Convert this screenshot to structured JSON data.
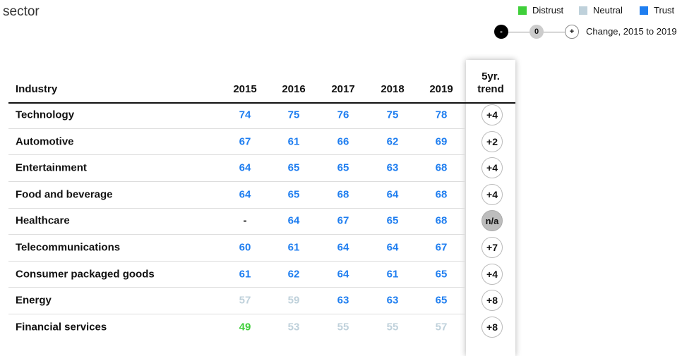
{
  "header": {
    "title": "sector"
  },
  "legend": {
    "items": [
      {
        "label": "Distrust",
        "color": "#3fcf3a"
      },
      {
        "label": "Neutral",
        "color": "#bfd1db"
      },
      {
        "label": "Trust",
        "color": "#1f7ef0"
      }
    ],
    "scale": {
      "minus": "-",
      "zero": "0",
      "plus": "+",
      "label": "Change, 2015 to 2019"
    }
  },
  "table": {
    "columns": [
      "Industry",
      2015,
      2016,
      2017,
      2018,
      2019,
      "5yr. trend"
    ],
    "rows": [
      {
        "name": "Technology",
        "values": [
          74,
          75,
          76,
          75,
          78
        ],
        "colors": [
          "#1f7ef0",
          "#1f7ef0",
          "#1f7ef0",
          "#1f7ef0",
          "#1f7ef0"
        ],
        "trend": "+4"
      },
      {
        "name": "Automotive",
        "values": [
          67,
          61,
          66,
          62,
          69
        ],
        "colors": [
          "#1f7ef0",
          "#1f7ef0",
          "#1f7ef0",
          "#1f7ef0",
          "#1f7ef0"
        ],
        "trend": "+2"
      },
      {
        "name": "Entertainment",
        "values": [
          64,
          65,
          65,
          63,
          68
        ],
        "colors": [
          "#1f7ef0",
          "#1f7ef0",
          "#1f7ef0",
          "#1f7ef0",
          "#1f7ef0"
        ],
        "trend": "+4"
      },
      {
        "name": "Food and beverage",
        "values": [
          64,
          65,
          68,
          64,
          68
        ],
        "colors": [
          "#1f7ef0",
          "#1f7ef0",
          "#1f7ef0",
          "#1f7ef0",
          "#1f7ef0"
        ],
        "trend": "+4"
      },
      {
        "name": "Healthcare",
        "values": [
          "-",
          64,
          67,
          65,
          68
        ],
        "colors": [
          "#111111",
          "#1f7ef0",
          "#1f7ef0",
          "#1f7ef0",
          "#1f7ef0"
        ],
        "trend": "n/a"
      },
      {
        "name": "Telecommunications",
        "values": [
          60,
          61,
          64,
          64,
          67
        ],
        "colors": [
          "#1f7ef0",
          "#1f7ef0",
          "#1f7ef0",
          "#1f7ef0",
          "#1f7ef0"
        ],
        "trend": "+7"
      },
      {
        "name": "Consumer packaged goods",
        "values": [
          61,
          62,
          64,
          61,
          65
        ],
        "colors": [
          "#1f7ef0",
          "#1f7ef0",
          "#1f7ef0",
          "#1f7ef0",
          "#1f7ef0"
        ],
        "trend": "+4"
      },
      {
        "name": "Energy",
        "values": [
          57,
          59,
          63,
          63,
          65
        ],
        "colors": [
          "#bfd1db",
          "#bfd1db",
          "#1f7ef0",
          "#1f7ef0",
          "#1f7ef0"
        ],
        "trend": "+8"
      },
      {
        "name": "Financial services",
        "values": [
          49,
          53,
          55,
          55,
          57
        ],
        "colors": [
          "#3fcf3a",
          "#bfd1db",
          "#bfd1db",
          "#bfd1db",
          "#bfd1db"
        ],
        "trend": "+8"
      }
    ]
  }
}
